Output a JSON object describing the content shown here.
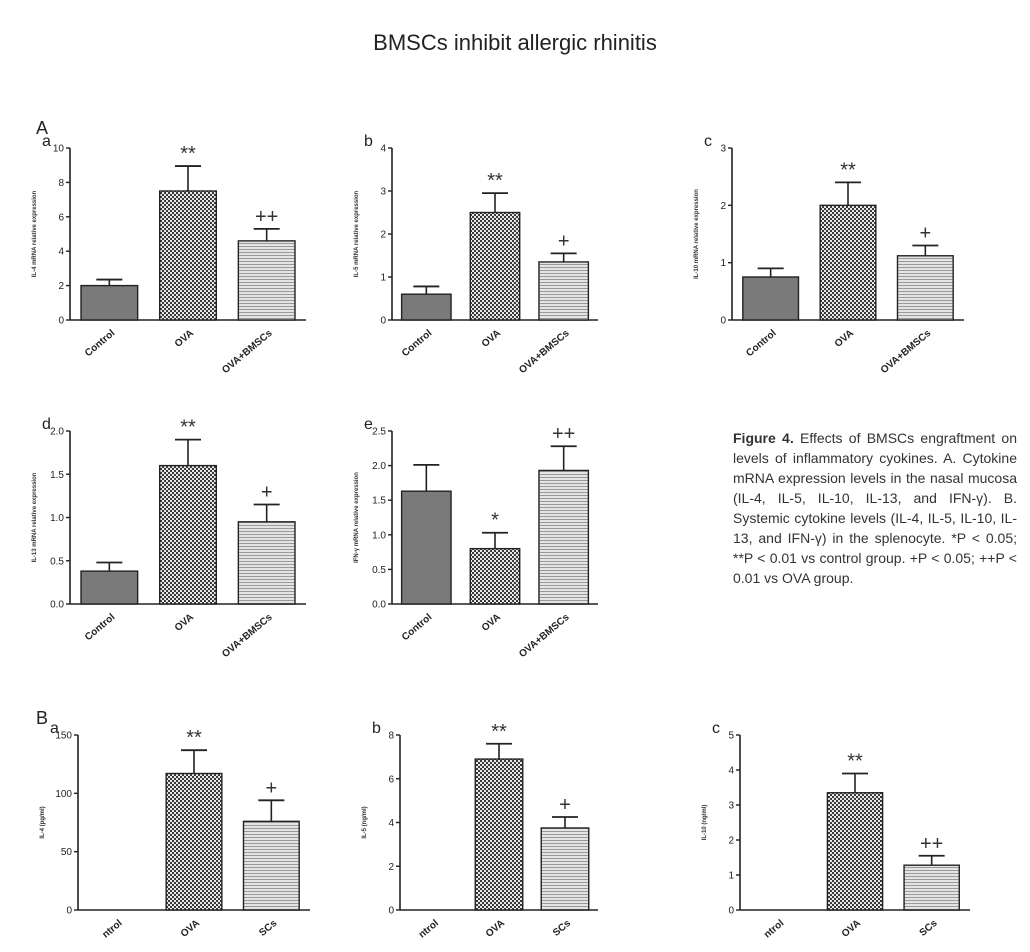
{
  "title": "BMSCs inhibit allergic rhinitis",
  "section_labels": [
    "A",
    "B"
  ],
  "caption": {
    "label": "Figure 4.",
    "text": "Effects of BMSCs engraftment on levels of inflammatory cyokines. A. Cytokine mRNA expression levels in the nasal mucosa (IL-4, IL-5, IL-10, IL-13, and IFN-γ). B. Systemic cytokine levels (IL-4, IL-5, IL-10, IL-13, and IFN-γ) in the splenocyte. *P < 0.05; **P < 0.01 vs control group. +P < 0.05; ++P < 0.01 vs OVA group."
  },
  "colors": {
    "control_fill": "#7a7a7a",
    "ova_fill": "#777777",
    "bmsc_fill": "#b5b5b5",
    "axis": "#222222"
  },
  "chart_data": [
    {
      "id": "Aa",
      "panel_label": "a",
      "type": "bar",
      "ylabel": "IL-4 mRNA relative expression",
      "categories": [
        "Control",
        "OVA",
        "OVA+BMSCs"
      ],
      "values": [
        2.0,
        7.5,
        4.6
      ],
      "errors": [
        0.35,
        1.45,
        0.7
      ],
      "significance": [
        "",
        "**",
        "++"
      ],
      "ylim": [
        0,
        10
      ],
      "yticks": [
        0,
        2,
        4,
        6,
        8,
        10
      ]
    },
    {
      "id": "Ab",
      "panel_label": "b",
      "type": "bar",
      "ylabel": "IL-5 mRNA relative expression",
      "categories": [
        "Control",
        "OVA",
        "OVA+BMSCs"
      ],
      "values": [
        0.6,
        2.5,
        1.35
      ],
      "errors": [
        0.18,
        0.45,
        0.2
      ],
      "significance": [
        "",
        "**",
        "+"
      ],
      "ylim": [
        0,
        4
      ],
      "yticks": [
        0,
        1,
        2,
        3,
        4
      ]
    },
    {
      "id": "Ac",
      "panel_label": "c",
      "type": "bar",
      "ylabel": "IL-10 mRNA relative expression",
      "categories": [
        "Control",
        "OVA",
        "OVA+BMSCs"
      ],
      "values": [
        0.75,
        2.0,
        1.12
      ],
      "errors": [
        0.15,
        0.4,
        0.18
      ],
      "significance": [
        "",
        "**",
        "+"
      ],
      "ylim": [
        0,
        3
      ],
      "yticks": [
        0,
        1,
        2,
        3
      ]
    },
    {
      "id": "Ad",
      "panel_label": "d",
      "type": "bar",
      "ylabel": "IL-13 mRNA relative expression",
      "categories": [
        "Control",
        "OVA",
        "OVA+BMSCs"
      ],
      "values": [
        0.38,
        1.6,
        0.95
      ],
      "errors": [
        0.1,
        0.3,
        0.2
      ],
      "significance": [
        "",
        "**",
        "+"
      ],
      "ylim": [
        0,
        2.0
      ],
      "yticks": [
        0,
        0.5,
        1.0,
        1.5,
        2.0
      ],
      "ytick_labels": [
        "0.0",
        "0.5",
        "1.0",
        "1.5",
        "2.0"
      ]
    },
    {
      "id": "Ae",
      "panel_label": "e",
      "type": "bar",
      "ylabel": "IFN-γ mRNA relative expression",
      "categories": [
        "Control",
        "OVA",
        "OVA+BMSCs"
      ],
      "values": [
        1.63,
        0.8,
        1.93
      ],
      "errors": [
        0.38,
        0.23,
        0.35
      ],
      "significance": [
        "",
        "*",
        "++"
      ],
      "ylim": [
        0,
        2.5
      ],
      "yticks": [
        0,
        0.5,
        1.0,
        1.5,
        2.0,
        2.5
      ],
      "ytick_labels": [
        "0.0",
        "0.5",
        "1.0",
        "1.5",
        "2.0",
        "2.5"
      ]
    },
    {
      "id": "Ba",
      "panel_label": "a",
      "type": "bar",
      "ylabel": "IL-4 (pg/ml)",
      "categories": [
        "Control",
        "OVA",
        "OVA+BMSCs"
      ],
      "category_labels": [
        "ntrol",
        "OVA",
        "SCs"
      ],
      "values": [
        0,
        117,
        76
      ],
      "errors": [
        0,
        20,
        18
      ],
      "significance": [
        "",
        "**",
        "+"
      ],
      "ylim": [
        0,
        150
      ],
      "yticks": [
        0,
        50,
        100,
        150
      ]
    },
    {
      "id": "Bb",
      "panel_label": "b",
      "type": "bar",
      "ylabel": "IL-5 (ng/ml)",
      "categories": [
        "Control",
        "OVA",
        "OVA+BMSCs"
      ],
      "category_labels": [
        "ntrol",
        "OVA",
        "SCs"
      ],
      "values": [
        0,
        6.9,
        3.75
      ],
      "errors": [
        0,
        0.7,
        0.5
      ],
      "significance": [
        "",
        "**",
        "+"
      ],
      "ylim": [
        0,
        8
      ],
      "yticks": [
        0,
        2,
        4,
        6,
        8
      ]
    },
    {
      "id": "Bc",
      "panel_label": "c",
      "type": "bar",
      "ylabel": "IL-10 (ng/ml)",
      "categories": [
        "Control",
        "OVA",
        "OVA+BMSCs"
      ],
      "category_labels": [
        "ntrol",
        "OVA",
        "SCs"
      ],
      "values": [
        0,
        3.35,
        1.28
      ],
      "errors": [
        0,
        0.55,
        0.27
      ],
      "significance": [
        "",
        "**",
        "++"
      ],
      "ylim": [
        0,
        5
      ],
      "yticks": [
        0,
        1,
        2,
        3,
        4,
        5
      ]
    }
  ]
}
